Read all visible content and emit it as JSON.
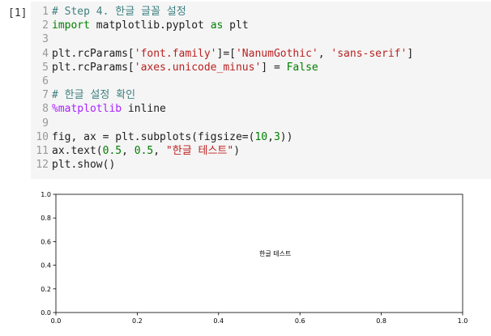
{
  "cell": {
    "prompt": "[1]",
    "lines": [
      {
        "n": "1",
        "parts": [
          {
            "t": "# Step 4. 한글 글꼴 설정",
            "c": "cm"
          }
        ]
      },
      {
        "n": "2",
        "parts": [
          {
            "t": "import",
            "c": "kw"
          },
          {
            "t": " matplotlib.pyplot ",
            "c": ""
          },
          {
            "t": "as",
            "c": "kw"
          },
          {
            "t": " plt",
            "c": ""
          }
        ]
      },
      {
        "n": "3",
        "parts": []
      },
      {
        "n": "4",
        "parts": [
          {
            "t": "plt.rcParams[",
            "c": ""
          },
          {
            "t": "'font.family'",
            "c": "st"
          },
          {
            "t": "]=[",
            "c": ""
          },
          {
            "t": "'NanumGothic'",
            "c": "st"
          },
          {
            "t": ", ",
            "c": ""
          },
          {
            "t": "'sans-serif'",
            "c": "st"
          },
          {
            "t": "]",
            "c": ""
          }
        ]
      },
      {
        "n": "5",
        "parts": [
          {
            "t": "plt.rcParams[",
            "c": ""
          },
          {
            "t": "'axes.unicode_minus'",
            "c": "st"
          },
          {
            "t": "] = ",
            "c": ""
          },
          {
            "t": "False",
            "c": "kw"
          }
        ]
      },
      {
        "n": "6",
        "parts": []
      },
      {
        "n": "7",
        "parts": [
          {
            "t": "# 한글 설정 확인",
            "c": "cm"
          }
        ]
      },
      {
        "n": "8",
        "parts": [
          {
            "t": "%matplotlib",
            "c": "mg"
          },
          {
            "t": " inline",
            "c": ""
          }
        ]
      },
      {
        "n": "9",
        "parts": []
      },
      {
        "n": "10",
        "parts": [
          {
            "t": "fig, ax = plt.subplots(figsize=(",
            "c": ""
          },
          {
            "t": "10",
            "c": "nm"
          },
          {
            "t": ",",
            "c": ""
          },
          {
            "t": "3",
            "c": "nm"
          },
          {
            "t": "))",
            "c": ""
          }
        ]
      },
      {
        "n": "11",
        "parts": [
          {
            "t": "ax.text(",
            "c": ""
          },
          {
            "t": "0.5",
            "c": "nm"
          },
          {
            "t": ", ",
            "c": ""
          },
          {
            "t": "0.5",
            "c": "nm"
          },
          {
            "t": ", ",
            "c": ""
          },
          {
            "t": "\"한글 테스트\"",
            "c": "st"
          },
          {
            "t": ")",
            "c": ""
          }
        ]
      },
      {
        "n": "12",
        "parts": [
          {
            "t": "plt.show()",
            "c": ""
          }
        ]
      }
    ]
  },
  "chart_data": {
    "type": "scatter",
    "xlim": [
      0.0,
      1.0
    ],
    "ylim": [
      0.0,
      1.0
    ],
    "xticks": [
      "0.0",
      "0.2",
      "0.4",
      "0.6",
      "0.8",
      "1.0"
    ],
    "yticks": [
      "0.0",
      "0.2",
      "0.4",
      "0.6",
      "0.8",
      "1.0"
    ],
    "grid": false,
    "annotations": [
      {
        "x": 0.5,
        "y": 0.5,
        "text": "한글 테스트"
      }
    ]
  }
}
